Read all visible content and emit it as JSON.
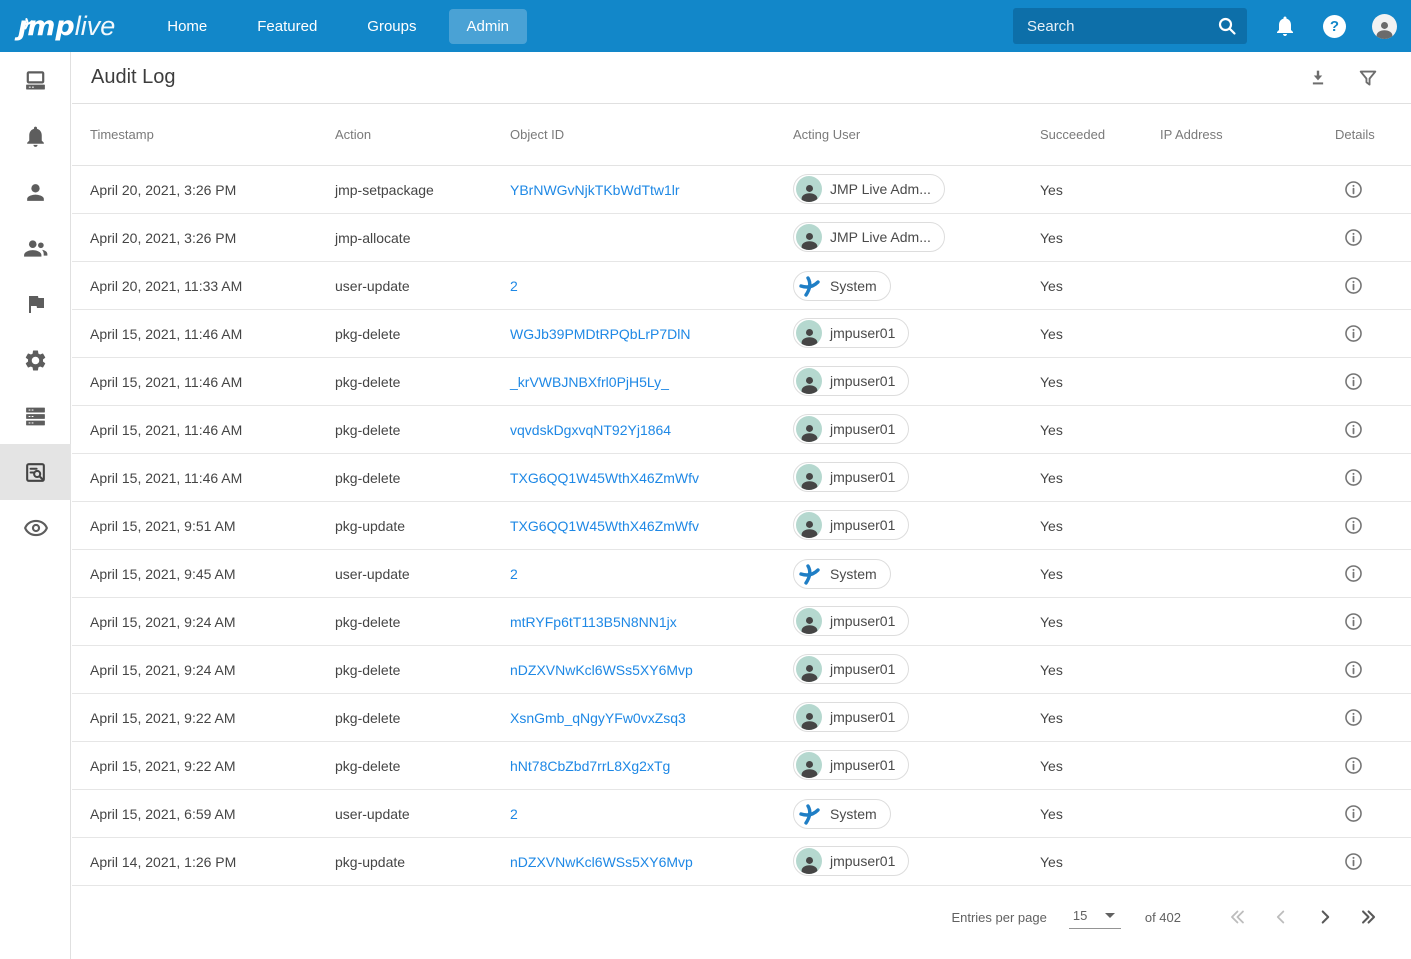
{
  "navbar": {
    "logo_primary": "ȷmp",
    "logo_secondary": "live",
    "items": [
      {
        "label": "Home",
        "active": false
      },
      {
        "label": "Featured",
        "active": false
      },
      {
        "label": "Groups",
        "active": false
      },
      {
        "label": "Admin",
        "active": true
      }
    ],
    "search_placeholder": "Search"
  },
  "sidebar": {
    "items": [
      {
        "name": "devices",
        "icon": "computer-icon",
        "active": false
      },
      {
        "name": "notifications",
        "icon": "bell-icon",
        "active": false
      },
      {
        "name": "user",
        "icon": "person-icon",
        "active": false
      },
      {
        "name": "groups",
        "icon": "people-icon",
        "active": false
      },
      {
        "name": "flags",
        "icon": "flag-icon",
        "active": false
      },
      {
        "name": "settings",
        "icon": "gear-icon",
        "active": false
      },
      {
        "name": "storage",
        "icon": "storage-icon",
        "active": false
      },
      {
        "name": "audit-log",
        "icon": "find-in-page-icon",
        "active": true
      },
      {
        "name": "visibility",
        "icon": "eye-icon",
        "active": false
      }
    ]
  },
  "page": {
    "title": "Audit Log"
  },
  "toolbar": {
    "icons": [
      "download-icon",
      "filter-icon"
    ]
  },
  "table": {
    "columns": [
      "Timestamp",
      "Action",
      "Object ID",
      "Acting User",
      "Succeeded",
      "IP Address",
      "Details"
    ],
    "rows": [
      {
        "timestamp": "April 20, 2021, 3:26 PM",
        "action": "jmp-setpackage",
        "object_id": "YBrNWGvNjkTKbWdTtw1lr",
        "acting_user": "JMP Live Adm...",
        "user_type": "admin",
        "succeeded": "Yes",
        "ip": ""
      },
      {
        "timestamp": "April 20, 2021, 3:26 PM",
        "action": "jmp-allocate",
        "object_id": "",
        "acting_user": "JMP Live Adm...",
        "user_type": "admin",
        "succeeded": "Yes",
        "ip": ""
      },
      {
        "timestamp": "April 20, 2021, 11:33 AM",
        "action": "user-update",
        "object_id": "2",
        "acting_user": "System",
        "user_type": "system",
        "succeeded": "Yes",
        "ip": ""
      },
      {
        "timestamp": "April 15, 2021, 11:46 AM",
        "action": "pkg-delete",
        "object_id": "WGJb39PMDtRPQbLrP7DlN",
        "acting_user": "jmpuser01",
        "user_type": "user",
        "succeeded": "Yes",
        "ip": ""
      },
      {
        "timestamp": "April 15, 2021, 11:46 AM",
        "action": "pkg-delete",
        "object_id": "_krVWBJNBXfrl0PjH5Ly_",
        "acting_user": "jmpuser01",
        "user_type": "user",
        "succeeded": "Yes",
        "ip": ""
      },
      {
        "timestamp": "April 15, 2021, 11:46 AM",
        "action": "pkg-delete",
        "object_id": "vqvdskDgxvqNT92Yj1864",
        "acting_user": "jmpuser01",
        "user_type": "user",
        "succeeded": "Yes",
        "ip": ""
      },
      {
        "timestamp": "April 15, 2021, 11:46 AM",
        "action": "pkg-delete",
        "object_id": "TXG6QQ1W45WthX46ZmWfv",
        "acting_user": "jmpuser01",
        "user_type": "user",
        "succeeded": "Yes",
        "ip": ""
      },
      {
        "timestamp": "April 15, 2021, 9:51 AM",
        "action": "pkg-update",
        "object_id": "TXG6QQ1W45WthX46ZmWfv",
        "acting_user": "jmpuser01",
        "user_type": "user",
        "succeeded": "Yes",
        "ip": ""
      },
      {
        "timestamp": "April 15, 2021, 9:45 AM",
        "action": "user-update",
        "object_id": "2",
        "acting_user": "System",
        "user_type": "system",
        "succeeded": "Yes",
        "ip": ""
      },
      {
        "timestamp": "April 15, 2021, 9:24 AM",
        "action": "pkg-delete",
        "object_id": "mtRYFp6tT113B5N8NN1jx",
        "acting_user": "jmpuser01",
        "user_type": "user",
        "succeeded": "Yes",
        "ip": ""
      },
      {
        "timestamp": "April 15, 2021, 9:24 AM",
        "action": "pkg-delete",
        "object_id": "nDZXVNwKcl6WSs5XY6Mvp",
        "acting_user": "jmpuser01",
        "user_type": "user",
        "succeeded": "Yes",
        "ip": ""
      },
      {
        "timestamp": "April 15, 2021, 9:22 AM",
        "action": "pkg-delete",
        "object_id": "XsnGmb_qNgyYFw0vxZsq3",
        "acting_user": "jmpuser01",
        "user_type": "user",
        "succeeded": "Yes",
        "ip": ""
      },
      {
        "timestamp": "April 15, 2021, 9:22 AM",
        "action": "pkg-delete",
        "object_id": "hNt78CbZbd7rrL8Xg2xTg",
        "acting_user": "jmpuser01",
        "user_type": "user",
        "succeeded": "Yes",
        "ip": ""
      },
      {
        "timestamp": "April 15, 2021, 6:59 AM",
        "action": "user-update",
        "object_id": "2",
        "acting_user": "System",
        "user_type": "system",
        "succeeded": "Yes",
        "ip": ""
      },
      {
        "timestamp": "April 14, 2021, 1:26 PM",
        "action": "pkg-update",
        "object_id": "nDZXVNwKcl6WSs5XY6Mvp",
        "acting_user": "jmpuser01",
        "user_type": "user",
        "succeeded": "Yes",
        "ip": ""
      }
    ]
  },
  "pagination": {
    "label": "Entries per page",
    "per_page": "15",
    "total": "of 402",
    "first_enabled": false,
    "prev_enabled": false,
    "next_enabled": true,
    "last_enabled": true
  },
  "colors": {
    "navbar_blue": "#1287c9",
    "active_tab_blue": "#4aa2d5",
    "search_field_blue": "#0d6fa9",
    "link_blue": "#1e88e5",
    "system_icon_blue": "#1f7ec5",
    "avatar_teal": "#b5d8cf",
    "row_border": "#e6e6e6",
    "header_text": "#7a7a7a"
  }
}
